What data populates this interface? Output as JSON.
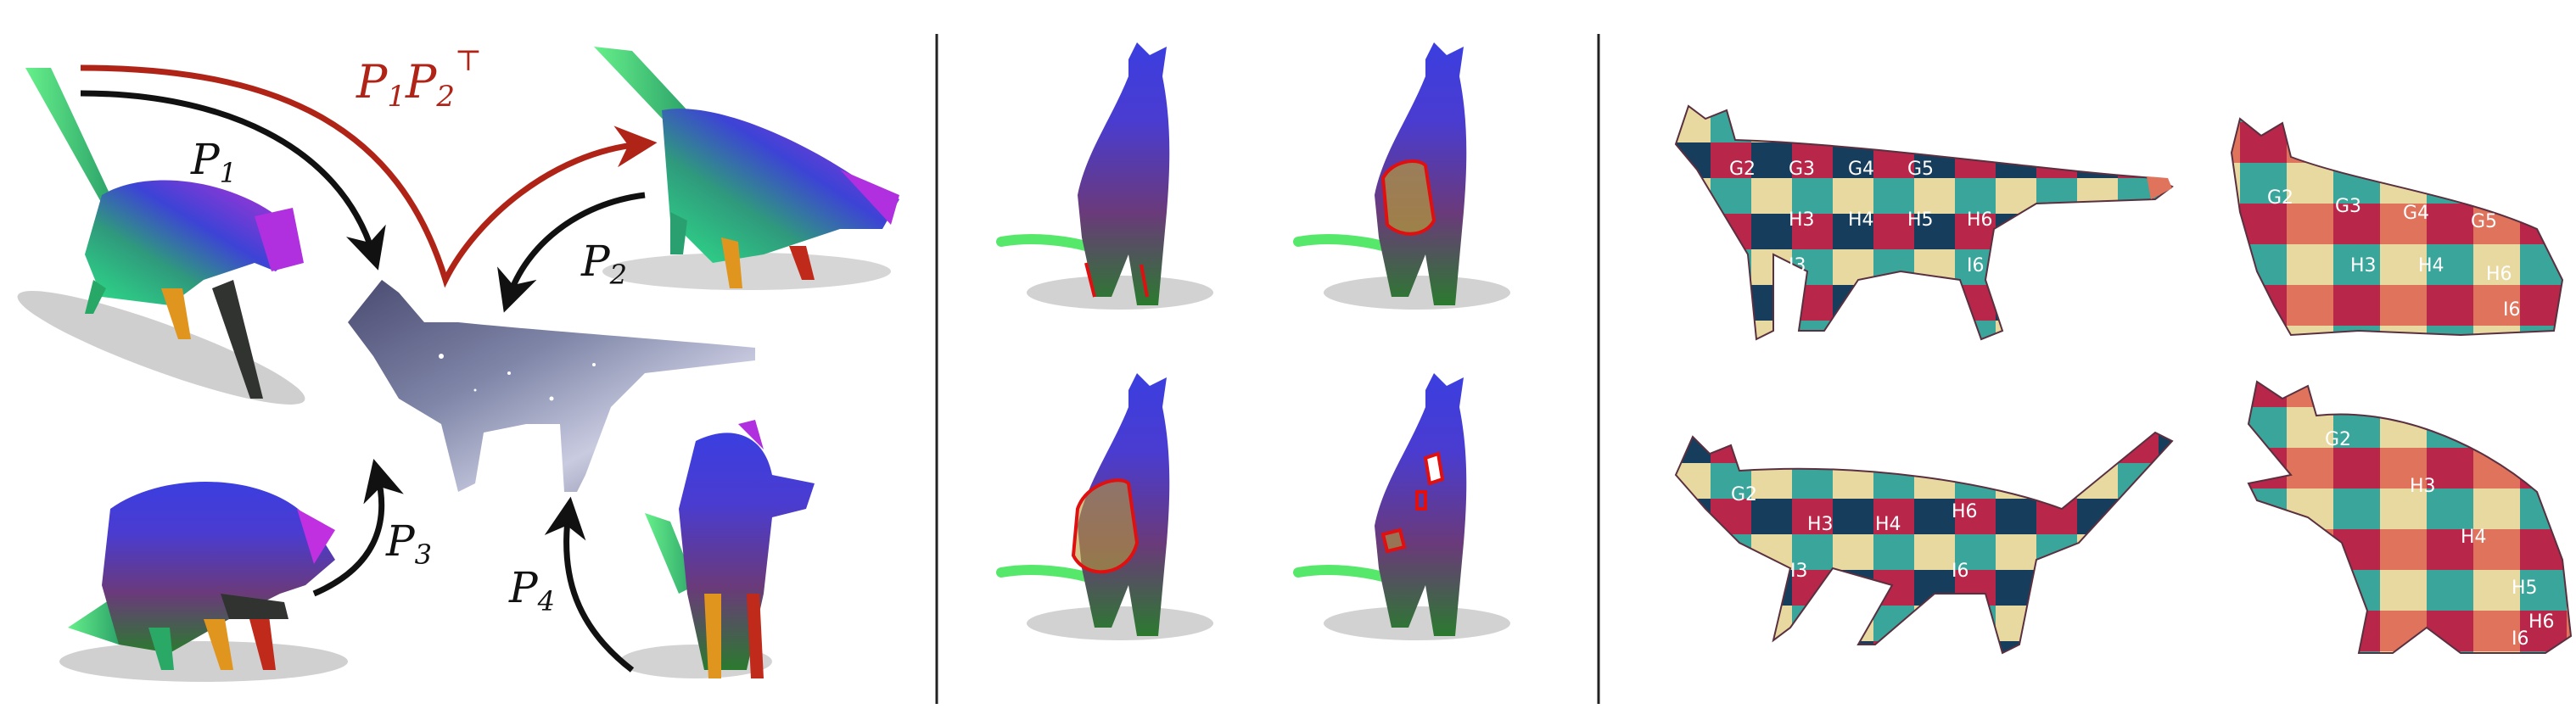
{
  "figure": {
    "panels": [
      {
        "name": "map-composition",
        "labels": {
          "p1": "P",
          "p1_sub": "1",
          "p2": "P",
          "p2_sub": "2",
          "p3": "P",
          "p3_sub": "3",
          "p4": "P",
          "p4_sub": "4",
          "composite_a": "P",
          "composite_a_sub": "1",
          "composite_b": "P",
          "composite_b_sub": "2",
          "composite_b_sup": "⊤"
        }
      },
      {
        "name": "segment-transfer"
      },
      {
        "name": "texture-transfer",
        "cells_cat1": [
          "G2",
          "G3",
          "G4",
          "G5",
          "H3",
          "H4",
          "H5",
          "H6",
          "I6",
          "I3"
        ],
        "cells_cat2": [
          "G2",
          "G3",
          "G4",
          "G5",
          "H3",
          "H4",
          "H6",
          "I6"
        ],
        "cells_cat3": [
          "G2",
          "H3",
          "H4",
          "H6",
          "I6",
          "I3"
        ],
        "cells_cat4": [
          "G2",
          "H3",
          "H4",
          "H5",
          "H6",
          "I6"
        ]
      }
    ],
    "colors": {
      "composite_arrow": "#b02418",
      "map_arrow": "#111111",
      "divider": "#222222",
      "segment_outline": "#e01010",
      "checker_crimson": "#b8264a",
      "checker_navy": "#173d5c",
      "checker_teal": "#3aa59a",
      "checker_cream": "#e8d9a0",
      "checker_salmon": "#e0735c"
    }
  }
}
